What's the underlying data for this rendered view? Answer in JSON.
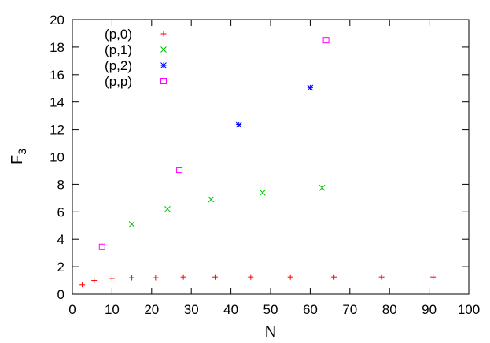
{
  "chart_data": {
    "type": "scatter",
    "title": "",
    "xlabel": "N",
    "ylabel_main": "F",
    "ylabel_sub": "3",
    "xlim": [
      0,
      100
    ],
    "ylim": [
      0,
      20
    ],
    "xticks": [
      "0",
      "10",
      "20",
      "30",
      "40",
      "50",
      "60",
      "70",
      "80",
      "90",
      "100"
    ],
    "yticks": [
      "0",
      "2",
      "4",
      "6",
      "8",
      "10",
      "12",
      "14",
      "16",
      "18",
      "20"
    ],
    "grid": false,
    "legend_position": "top-left",
    "series": [
      {
        "name": "(p,0)",
        "marker": "plus",
        "color": "#ff0000",
        "points": [
          [
            2.5,
            0.7
          ],
          [
            5.5,
            1.0
          ],
          [
            10,
            1.15
          ],
          [
            15,
            1.2
          ],
          [
            21,
            1.2
          ],
          [
            28,
            1.25
          ],
          [
            36,
            1.25
          ],
          [
            45,
            1.25
          ],
          [
            55,
            1.25
          ],
          [
            66,
            1.25
          ],
          [
            78,
            1.25
          ],
          [
            91,
            1.25
          ]
        ]
      },
      {
        "name": "(p,1)",
        "marker": "cross",
        "color": "#00c000",
        "points": [
          [
            15,
            5.1
          ],
          [
            24,
            6.2
          ],
          [
            35,
            6.9
          ],
          [
            48,
            7.4
          ],
          [
            63,
            7.75
          ]
        ]
      },
      {
        "name": "(p,2)",
        "marker": "star",
        "color": "#0000ff",
        "points": [
          [
            42,
            12.35
          ],
          [
            60,
            15.05
          ]
        ]
      },
      {
        "name": "(p,p)",
        "marker": "square",
        "color": "#ff00ff",
        "points": [
          [
            7.5,
            3.45
          ],
          [
            27,
            9.05
          ],
          [
            64,
            18.5
          ]
        ]
      }
    ]
  }
}
